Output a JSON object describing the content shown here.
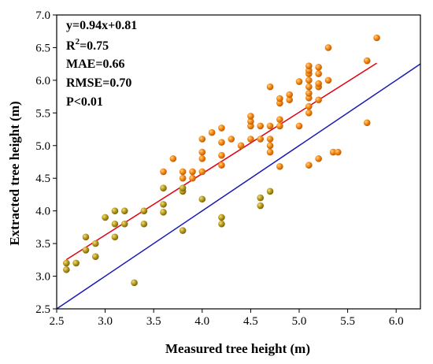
{
  "chart_data": {
    "type": "scatter",
    "xlabel": "Measured tree height (m)",
    "ylabel": "Extracted tree height (m)",
    "xlim": [
      2.5,
      6.25
    ],
    "ylim": [
      2.5,
      7.0
    ],
    "xticks": [
      "2.5",
      "3.0",
      "3.5",
      "4.0",
      "4.5",
      "5.0",
      "5.5",
      "6.0"
    ],
    "yticks": [
      "2.5",
      "3.0",
      "3.5",
      "4.0",
      "4.5",
      "5.0",
      "5.5",
      "6.0",
      "6.5",
      "7.0"
    ],
    "grid": false,
    "annotations": {
      "equation": "y=0.94x+0.81",
      "r2_prefix": "R",
      "r2_sup": "2",
      "r2_value": "=0.75",
      "mae": "MAE=0.66",
      "rmse": "RMSE=0.70",
      "p": "P<0.01"
    },
    "fit_line": {
      "slope": 0.94,
      "intercept": 0.81,
      "x_range": [
        2.6,
        5.8
      ],
      "color": "#e3000f"
    },
    "identity_line": {
      "x_range": [
        2.5,
        6.25
      ],
      "color": "#1a1ab4"
    },
    "points": [
      [
        2.6,
        3.1
      ],
      [
        2.6,
        3.2
      ],
      [
        2.7,
        3.2
      ],
      [
        2.8,
        3.4
      ],
      [
        2.8,
        3.6
      ],
      [
        2.9,
        3.3
      ],
      [
        2.9,
        3.5
      ],
      [
        3.0,
        3.9
      ],
      [
        3.1,
        3.6
      ],
      [
        3.1,
        3.8
      ],
      [
        3.1,
        4.0
      ],
      [
        3.2,
        3.8
      ],
      [
        3.2,
        4.0
      ],
      [
        3.3,
        2.9
      ],
      [
        3.4,
        3.8
      ],
      [
        3.4,
        4.0
      ],
      [
        3.6,
        3.98
      ],
      [
        3.6,
        4.1
      ],
      [
        3.6,
        4.35
      ],
      [
        3.6,
        4.6
      ],
      [
        3.7,
        4.8
      ],
      [
        3.8,
        3.7
      ],
      [
        3.8,
        4.3
      ],
      [
        3.8,
        4.35
      ],
      [
        3.8,
        4.5
      ],
      [
        3.8,
        4.6
      ],
      [
        3.9,
        4.5
      ],
      [
        3.9,
        4.6
      ],
      [
        4.0,
        4.18
      ],
      [
        4.0,
        4.6
      ],
      [
        4.0,
        4.8
      ],
      [
        4.0,
        4.9
      ],
      [
        4.0,
        5.1
      ],
      [
        4.1,
        5.2
      ],
      [
        4.2,
        3.8
      ],
      [
        4.2,
        3.9
      ],
      [
        4.2,
        4.7
      ],
      [
        4.2,
        4.85
      ],
      [
        4.2,
        5.05
      ],
      [
        4.2,
        5.27
      ],
      [
        4.3,
        5.1
      ],
      [
        4.4,
        5.0
      ],
      [
        4.5,
        5.1
      ],
      [
        4.5,
        5.3
      ],
      [
        4.5,
        5.37
      ],
      [
        4.5,
        5.45
      ],
      [
        4.6,
        4.08
      ],
      [
        4.6,
        4.2
      ],
      [
        4.6,
        5.1
      ],
      [
        4.6,
        5.3
      ],
      [
        4.7,
        4.3
      ],
      [
        4.7,
        4.9
      ],
      [
        4.7,
        5.0
      ],
      [
        4.7,
        5.1
      ],
      [
        4.7,
        5.3
      ],
      [
        4.7,
        5.9
      ],
      [
        4.8,
        4.68
      ],
      [
        4.8,
        5.3
      ],
      [
        4.8,
        5.4
      ],
      [
        4.8,
        5.65
      ],
      [
        4.8,
        5.72
      ],
      [
        4.9,
        5.7
      ],
      [
        4.9,
        5.78
      ],
      [
        5.0,
        5.3
      ],
      [
        5.0,
        5.98
      ],
      [
        5.1,
        4.7
      ],
      [
        5.1,
        5.5
      ],
      [
        5.1,
        5.6
      ],
      [
        5.1,
        5.73
      ],
      [
        5.1,
        5.8
      ],
      [
        5.1,
        5.9
      ],
      [
        5.1,
        6.0
      ],
      [
        5.1,
        6.1
      ],
      [
        5.1,
        6.15
      ],
      [
        5.1,
        6.22
      ],
      [
        5.2,
        4.8
      ],
      [
        5.2,
        5.7
      ],
      [
        5.2,
        5.9
      ],
      [
        5.2,
        5.95
      ],
      [
        5.2,
        6.1
      ],
      [
        5.2,
        6.2
      ],
      [
        5.3,
        6.0
      ],
      [
        5.3,
        6.5
      ],
      [
        5.35,
        4.9
      ],
      [
        5.4,
        4.9
      ],
      [
        5.7,
        5.35
      ],
      [
        5.7,
        6.3
      ],
      [
        5.8,
        6.65
      ]
    ]
  }
}
